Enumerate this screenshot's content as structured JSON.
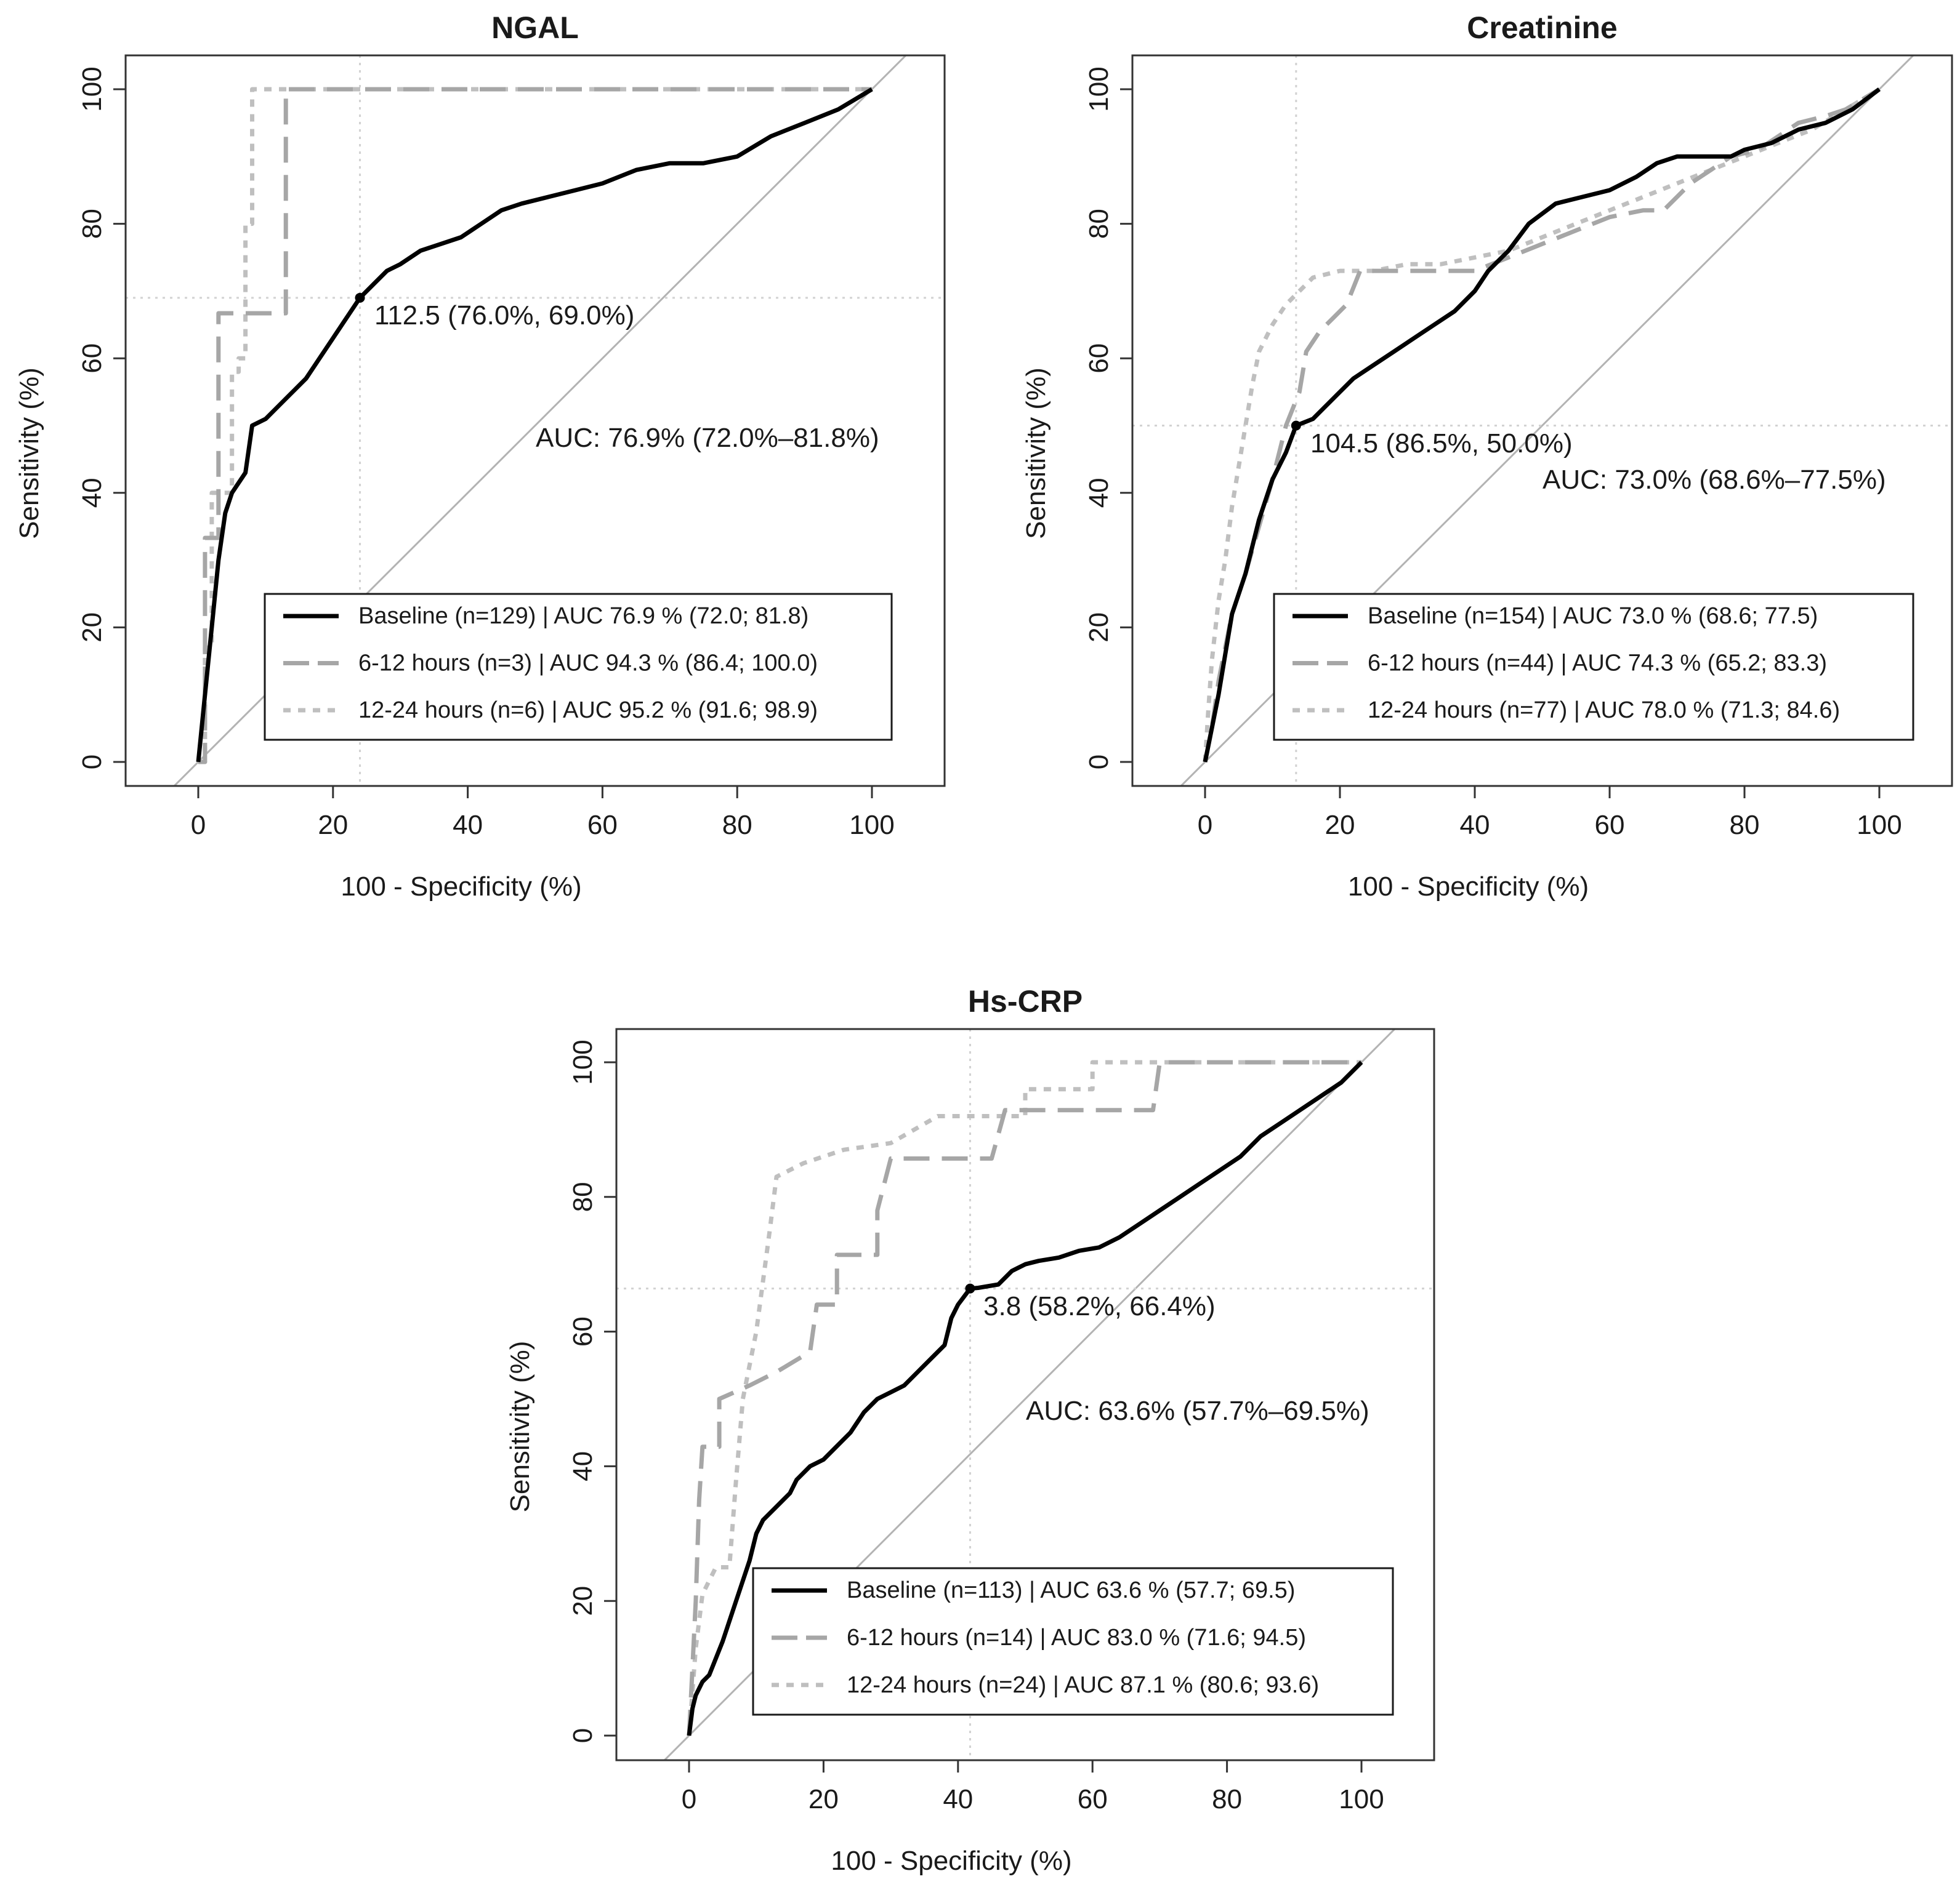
{
  "colors": {
    "baseline": "#000000",
    "h6_12": "#a6a6a6",
    "h12_24": "#bfbfbf",
    "diagonal": "#b3b3b3",
    "cutoff_guides": "#d2d2d2"
  },
  "chart_data": [
    {
      "type": "line",
      "title": "NGAL",
      "xlabel": "100 - Specificity (%)",
      "ylabel": "Sensitivity (%)",
      "xlim": [
        0,
        100
      ],
      "ylim": [
        0,
        100
      ],
      "x_ticks": [
        "0",
        "20",
        "40",
        "60",
        "80",
        "100"
      ],
      "y_ticks": [
        "0",
        "20",
        "40",
        "60",
        "80",
        "100"
      ],
      "grid": false,
      "legend_position": "bottom-right",
      "cutoff": {
        "label": "112.5 (76.0%, 69.0%)",
        "x": 24.0,
        "y": 69.0
      },
      "auc_text": "AUC: 76.9% (72.0%–81.8%)",
      "series": [
        {
          "name": "Baseline (n=129) | AUC 76.9 % (72.0; 81.8)",
          "style": "solid",
          "points": [
            [
              0,
              0
            ],
            [
              1,
              10
            ],
            [
              2,
              20
            ],
            [
              3,
              30
            ],
            [
              4,
              37
            ],
            [
              5,
              40
            ],
            [
              7,
              43
            ],
            [
              8,
              50
            ],
            [
              10,
              51
            ],
            [
              12,
              53
            ],
            [
              14,
              55
            ],
            [
              16,
              57
            ],
            [
              18,
              60
            ],
            [
              20,
              63
            ],
            [
              22,
              66
            ],
            [
              24,
              69
            ],
            [
              26,
              71
            ],
            [
              28,
              73
            ],
            [
              30,
              74
            ],
            [
              33,
              76
            ],
            [
              36,
              77
            ],
            [
              39,
              78
            ],
            [
              42,
              80
            ],
            [
              45,
              82
            ],
            [
              48,
              83
            ],
            [
              52,
              84
            ],
            [
              56,
              85
            ],
            [
              60,
              86
            ],
            [
              65,
              88
            ],
            [
              70,
              89
            ],
            [
              75,
              89
            ],
            [
              80,
              90
            ],
            [
              85,
              93
            ],
            [
              90,
              95
            ],
            [
              95,
              97
            ],
            [
              100,
              100
            ]
          ]
        },
        {
          "name": "6-12 hours (n=3) | AUC 94.3 % (86.4; 100.0)",
          "style": "longdash",
          "points": [
            [
              0,
              0
            ],
            [
              1,
              0
            ],
            [
              1,
              33.3
            ],
            [
              3,
              33.3
            ],
            [
              3,
              66.7
            ],
            [
              13,
              66.7
            ],
            [
              13,
              100
            ],
            [
              100,
              100
            ]
          ]
        },
        {
          "name": "12-24 hours (n=6) | AUC 95.2 % (91.6; 98.9)",
          "style": "dotted",
          "points": [
            [
              0,
              0
            ],
            [
              1,
              0
            ],
            [
              1,
              17
            ],
            [
              2,
              17
            ],
            [
              2,
              40
            ],
            [
              5,
              40
            ],
            [
              5,
              58
            ],
            [
              6,
              58
            ],
            [
              6,
              60
            ],
            [
              7,
              60
            ],
            [
              7,
              80
            ],
            [
              8,
              80
            ],
            [
              8,
              100
            ],
            [
              100,
              100
            ]
          ]
        }
      ]
    },
    {
      "type": "line",
      "title": "Creatinine",
      "xlabel": "100 - Specificity (%)",
      "ylabel": "Sensitivity (%)",
      "xlim": [
        0,
        100
      ],
      "ylim": [
        0,
        100
      ],
      "x_ticks": [
        "0",
        "20",
        "40",
        "60",
        "80",
        "100"
      ],
      "y_ticks": [
        "0",
        "20",
        "40",
        "60",
        "80",
        "100"
      ],
      "grid": false,
      "legend_position": "bottom-right",
      "cutoff": {
        "label": "104.5 (86.5%, 50.0%)",
        "x": 13.5,
        "y": 50.0
      },
      "auc_text": "AUC: 73.0% (68.6%–77.5%)",
      "series": [
        {
          "name": "Baseline (n=154) | AUC 73.0 % (68.6; 77.5)",
          "style": "solid",
          "points": [
            [
              0,
              0
            ],
            [
              1,
              5
            ],
            [
              2,
              10
            ],
            [
              3,
              16
            ],
            [
              4,
              22
            ],
            [
              6,
              28
            ],
            [
              8,
              36
            ],
            [
              10,
              42
            ],
            [
              12,
              46
            ],
            [
              13.5,
              50
            ],
            [
              16,
              51
            ],
            [
              18,
              53
            ],
            [
              20,
              55
            ],
            [
              22,
              57
            ],
            [
              25,
              59
            ],
            [
              28,
              61
            ],
            [
              31,
              63
            ],
            [
              34,
              65
            ],
            [
              37,
              67
            ],
            [
              40,
              70
            ],
            [
              42,
              73
            ],
            [
              45,
              76
            ],
            [
              48,
              80
            ],
            [
              52,
              83
            ],
            [
              56,
              84
            ],
            [
              60,
              85
            ],
            [
              64,
              87
            ],
            [
              67,
              89
            ],
            [
              70,
              90
            ],
            [
              74,
              90
            ],
            [
              78,
              90
            ],
            [
              80,
              91
            ],
            [
              84,
              92
            ],
            [
              88,
              94
            ],
            [
              92,
              95
            ],
            [
              96,
              97
            ],
            [
              100,
              100
            ]
          ]
        },
        {
          "name": "6-12 hours (n=44) | AUC 74.3 % (65.2; 83.3)",
          "style": "longdash",
          "points": [
            [
              0,
              0
            ],
            [
              1,
              5
            ],
            [
              2,
              12
            ],
            [
              3,
              17
            ],
            [
              4,
              22
            ],
            [
              6,
              28
            ],
            [
              8,
              35
            ],
            [
              10,
              42
            ],
            [
              12,
              50
            ],
            [
              14,
              55
            ],
            [
              15,
              61
            ],
            [
              17,
              64
            ],
            [
              19,
              66
            ],
            [
              21,
              68
            ],
            [
              23,
              73
            ],
            [
              30,
              73
            ],
            [
              35,
              73
            ],
            [
              40,
              73
            ],
            [
              45,
              75
            ],
            [
              50,
              77
            ],
            [
              55,
              79
            ],
            [
              60,
              81
            ],
            [
              65,
              82
            ],
            [
              68,
              82
            ],
            [
              70,
              84
            ],
            [
              72,
              86
            ],
            [
              75,
              88
            ],
            [
              78,
              90
            ],
            [
              82,
              91
            ],
            [
              85,
              93
            ],
            [
              88,
              95
            ],
            [
              92,
              96
            ],
            [
              95,
              97
            ],
            [
              100,
              100
            ]
          ]
        },
        {
          "name": "12-24 hours (n=77) | AUC 78.0 % (71.3; 84.6)",
          "style": "dotted",
          "points": [
            [
              0,
              0
            ],
            [
              0.5,
              8
            ],
            [
              1,
              15
            ],
            [
              2,
              24
            ],
            [
              3,
              30
            ],
            [
              4,
              38
            ],
            [
              5,
              44
            ],
            [
              6,
              50
            ],
            [
              7,
              56
            ],
            [
              8,
              61
            ],
            [
              10,
              65
            ],
            [
              12,
              68
            ],
            [
              14,
              70
            ],
            [
              16,
              72
            ],
            [
              20,
              73
            ],
            [
              25,
              73
            ],
            [
              30,
              74
            ],
            [
              35,
              74
            ],
            [
              40,
              75
            ],
            [
              45,
              76
            ],
            [
              50,
              78
            ],
            [
              55,
              80
            ],
            [
              60,
              82
            ],
            [
              65,
              84
            ],
            [
              70,
              86
            ],
            [
              75,
              88
            ],
            [
              80,
              90
            ],
            [
              85,
              92
            ],
            [
              90,
              94
            ],
            [
              95,
              97
            ],
            [
              100,
              100
            ]
          ]
        }
      ]
    },
    {
      "type": "line",
      "title": "Hs-CRP",
      "xlabel": "100 - Specificity (%)",
      "ylabel": "Sensitivity (%)",
      "xlim": [
        0,
        100
      ],
      "ylim": [
        0,
        100
      ],
      "x_ticks": [
        "0",
        "20",
        "40",
        "60",
        "80",
        "100"
      ],
      "y_ticks": [
        "0",
        "20",
        "40",
        "60",
        "80",
        "100"
      ],
      "grid": false,
      "legend_position": "bottom-right",
      "cutoff": {
        "label": "3.8 (58.2%, 66.4%)",
        "x": 41.8,
        "y": 66.4
      },
      "auc_text": "AUC: 63.6% (57.7%–69.5%)",
      "series": [
        {
          "name": "Baseline (n=113) | AUC 63.6 % (57.7; 69.5)",
          "style": "solid",
          "points": [
            [
              0,
              0
            ],
            [
              0.5,
              4
            ],
            [
              1,
              6
            ],
            [
              2,
              8
            ],
            [
              3,
              9
            ],
            [
              5,
              14
            ],
            [
              7,
              20
            ],
            [
              9,
              26
            ],
            [
              10,
              30
            ],
            [
              11,
              32
            ],
            [
              13,
              34
            ],
            [
              15,
              36
            ],
            [
              16,
              38
            ],
            [
              18,
              40
            ],
            [
              20,
              41
            ],
            [
              22,
              43
            ],
            [
              24,
              45
            ],
            [
              26,
              48
            ],
            [
              28,
              50
            ],
            [
              30,
              51
            ],
            [
              32,
              52
            ],
            [
              34,
              54
            ],
            [
              36,
              56
            ],
            [
              38,
              58
            ],
            [
              39,
              62
            ],
            [
              40,
              64
            ],
            [
              41.8,
              66.4
            ],
            [
              43,
              66.5
            ],
            [
              46,
              67
            ],
            [
              48,
              69
            ],
            [
              50,
              70
            ],
            [
              52,
              70.5
            ],
            [
              55,
              71
            ],
            [
              58,
              72
            ],
            [
              61,
              72.5
            ],
            [
              64,
              74
            ],
            [
              67,
              76
            ],
            [
              70,
              78
            ],
            [
              73,
              80
            ],
            [
              76,
              82
            ],
            [
              79,
              84
            ],
            [
              82,
              86
            ],
            [
              85,
              89
            ],
            [
              88,
              91
            ],
            [
              91,
              93
            ],
            [
              94,
              95
            ],
            [
              97,
              97
            ],
            [
              100,
              100
            ]
          ]
        },
        {
          "name": "6-12 hours (n=14) | AUC 83.0 % (71.6; 94.5)",
          "style": "longdash",
          "points": [
            [
              0,
              0
            ],
            [
              0.5,
              10
            ],
            [
              1,
              20
            ],
            [
              1.5,
              35
            ],
            [
              2,
              42.9
            ],
            [
              4.5,
              42.9
            ],
            [
              4.5,
              50
            ],
            [
              9,
              52
            ],
            [
              13,
              54
            ],
            [
              18,
              57
            ],
            [
              19,
              64
            ],
            [
              22,
              64
            ],
            [
              22,
              71.4
            ],
            [
              28,
              71.4
            ],
            [
              28,
              78
            ],
            [
              30,
              85.7
            ],
            [
              45,
              85.7
            ],
            [
              47,
              92.9
            ],
            [
              69,
              92.9
            ],
            [
              70,
              100
            ],
            [
              100,
              100
            ]
          ]
        },
        {
          "name": "12-24 hours (n=24) | AUC 87.1 % (80.6; 93.6)",
          "style": "dotted",
          "points": [
            [
              0,
              0
            ],
            [
              1,
              13
            ],
            [
              2,
              21
            ],
            [
              4,
              25
            ],
            [
              6,
              25
            ],
            [
              7,
              38
            ],
            [
              8,
              50
            ],
            [
              10,
              60
            ],
            [
              12,
              75
            ],
            [
              13,
              83
            ],
            [
              17,
              85
            ],
            [
              23,
              87
            ],
            [
              30,
              88
            ],
            [
              37,
              92
            ],
            [
              50,
              92
            ],
            [
              50,
              96
            ],
            [
              60,
              96
            ],
            [
              60,
              100
            ],
            [
              100,
              100
            ]
          ]
        }
      ]
    }
  ]
}
